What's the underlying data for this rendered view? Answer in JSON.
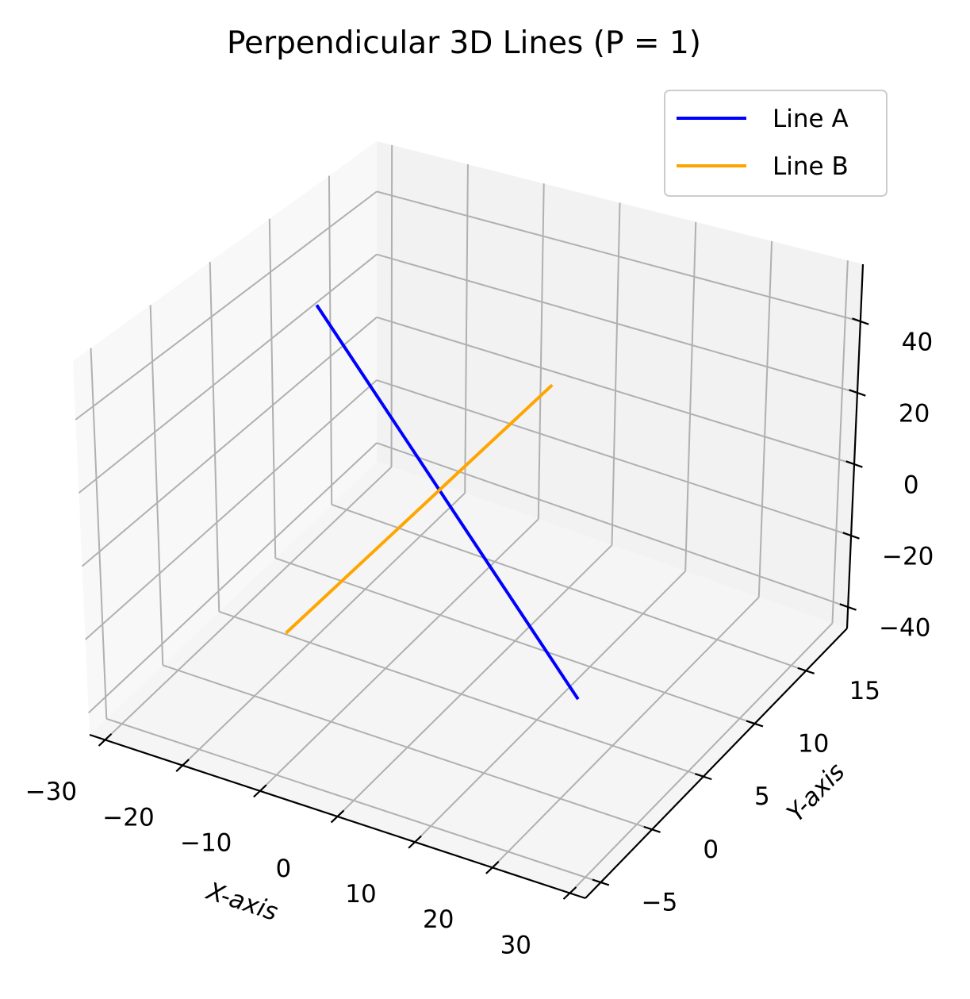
{
  "chart_data": {
    "type": "line",
    "projection": "3d",
    "title": "Perpendicular 3D Lines (P = 1)",
    "xlabel": "X-axis",
    "ylabel": "Y-axis",
    "zlabel": "",
    "xlim": [
      -32,
      32
    ],
    "ylim": [
      -6.5,
      19
    ],
    "zlim": [
      -46,
      56
    ],
    "xticks": [
      -30,
      -20,
      -10,
      0,
      10,
      20,
      30
    ],
    "yticks": [
      -5,
      0,
      5,
      10,
      15
    ],
    "zticks": [
      -40,
      -20,
      0,
      20,
      40
    ],
    "xtick_labels": [
      "−30",
      "−20",
      "−10",
      "0",
      "10",
      "20",
      "30"
    ],
    "ytick_labels": [
      "−5",
      "0",
      "5",
      "10",
      "15"
    ],
    "ztick_labels": [
      "−40",
      "−20",
      "0",
      "20",
      "40"
    ],
    "grid": true,
    "legend_position": "upper right",
    "series": [
      {
        "name": "Line A",
        "color": "#0000ff",
        "points": [
          [
            -20,
            6,
            50
          ],
          [
            14,
            6,
            -40
          ]
        ]
      },
      {
        "name": "Line B",
        "color": "#ffa500",
        "points": [
          [
            -7,
            -6,
            0
          ],
          [
            -7,
            18,
            0
          ]
        ]
      }
    ]
  }
}
